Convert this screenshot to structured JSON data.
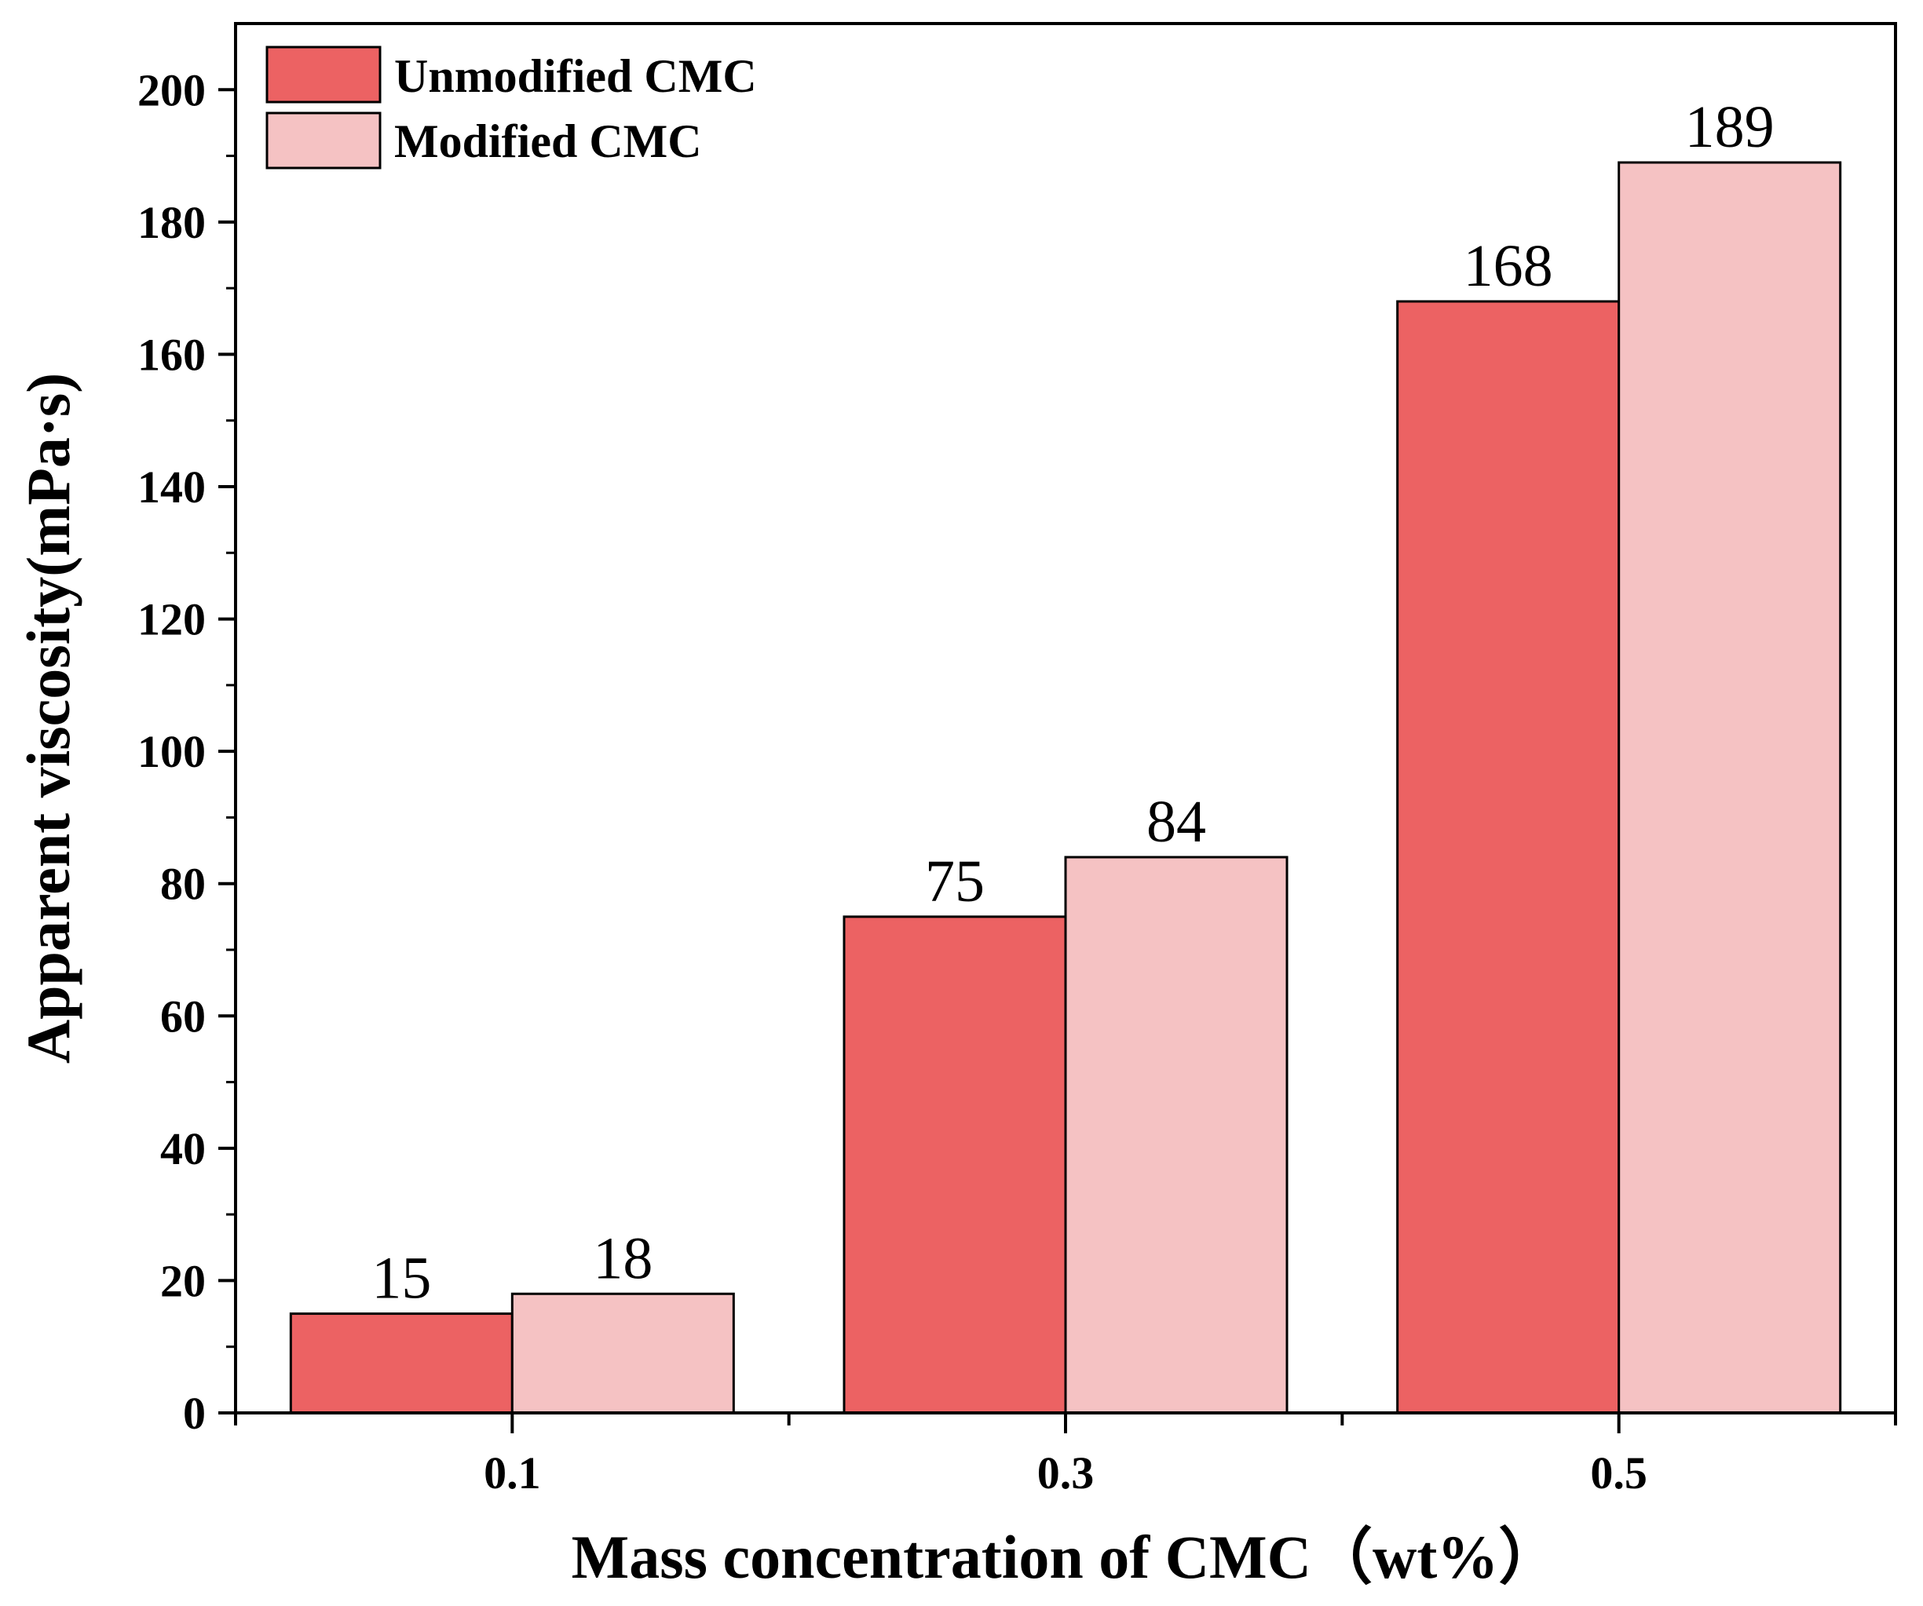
{
  "chart_data": {
    "type": "bar",
    "categories": [
      "0.1",
      "0.3",
      "0.5"
    ],
    "series": [
      {
        "name": "Unmodified CMC",
        "values": [
          15,
          75,
          168
        ],
        "color": "#ec6263"
      },
      {
        "name": "Modified CMC",
        "values": [
          18,
          84,
          189
        ],
        "color": "#f5c2c3"
      }
    ],
    "data_labels": [
      [
        "15",
        "75",
        "168"
      ],
      [
        "18",
        "84",
        "189"
      ]
    ],
    "xlabel": "Mass concentration of CMC（wt%）",
    "ylabel": "Apparent viscosity(mPa·s)",
    "ylim": [
      0,
      210
    ],
    "yticks": [
      "0",
      "20",
      "40",
      "60",
      "80",
      "100",
      "120",
      "140",
      "160",
      "180",
      "200"
    ],
    "ytick_values": [
      0,
      20,
      40,
      60,
      80,
      100,
      120,
      140,
      160,
      180,
      200
    ],
    "grid": false,
    "legend_position": "top-left"
  }
}
